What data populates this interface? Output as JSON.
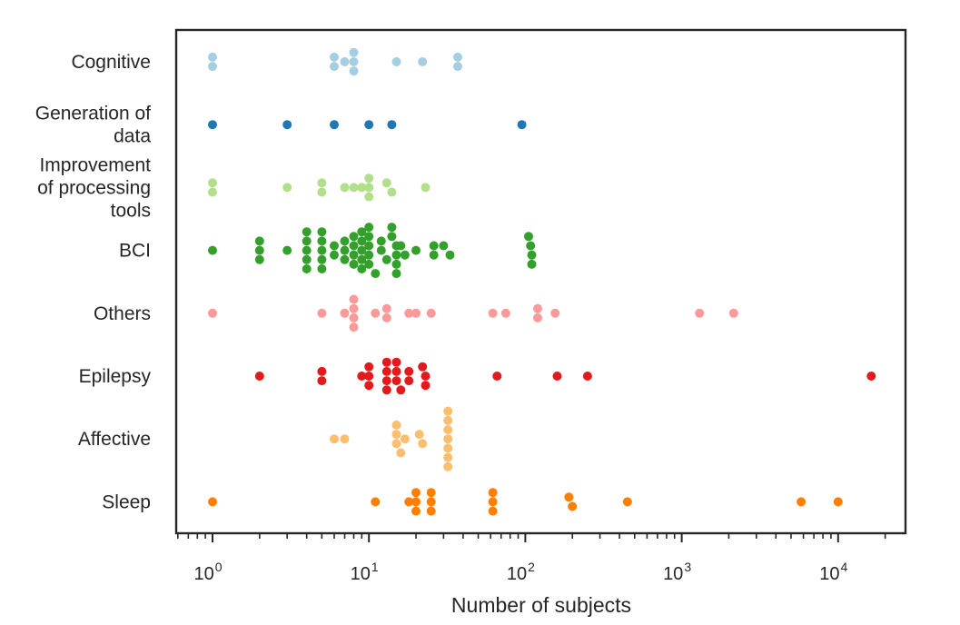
{
  "chart_data": {
    "type": "scatter",
    "subtype": "swarm",
    "xlabel": "Number of subjects",
    "ylabel": "",
    "x_scale": "log",
    "xlim": [
      0.6,
      28000
    ],
    "x_ticks": [
      {
        "value": 1,
        "base": "10",
        "exp": "0"
      },
      {
        "value": 10,
        "base": "10",
        "exp": "1"
      },
      {
        "value": 100,
        "base": "10",
        "exp": "2"
      },
      {
        "value": 1000,
        "base": "10",
        "exp": "3"
      },
      {
        "value": 10000,
        "base": "10",
        "exp": "4"
      }
    ],
    "grid": false,
    "legend": "none",
    "categories": [
      {
        "label": [
          "Cognitive"
        ],
        "color": "#a6cee3",
        "values": [
          1,
          1,
          6,
          6,
          7,
          8,
          8,
          8,
          15,
          22,
          37,
          37
        ]
      },
      {
        "label": [
          "Generation of",
          "data"
        ],
        "color": "#1f78b4",
        "values": [
          1,
          3,
          6,
          10,
          14,
          95
        ]
      },
      {
        "label": [
          "Improvement",
          "of processing",
          "tools"
        ],
        "color": "#b2df8a",
        "values": [
          1,
          1,
          3,
          5,
          5,
          7,
          8,
          9,
          10,
          10,
          10,
          13,
          14,
          23
        ]
      },
      {
        "label": [
          "BCI"
        ],
        "color": "#33a02c",
        "values": [
          1,
          2,
          2,
          2,
          3,
          4,
          4,
          4,
          4,
          4,
          5,
          5,
          5,
          5,
          5,
          6,
          6,
          7,
          7,
          7,
          8,
          8,
          8,
          8,
          9,
          9,
          9,
          9,
          9,
          10,
          10,
          10,
          10,
          10,
          11,
          12,
          12,
          13,
          14,
          14,
          15,
          15,
          15,
          15,
          16,
          17,
          20,
          26,
          26,
          30,
          33,
          105,
          108,
          110,
          110
        ]
      },
      {
        "label": [
          "Others"
        ],
        "color": "#fb9a99",
        "values": [
          1,
          5,
          7,
          8,
          8,
          8,
          8,
          11,
          13,
          13,
          18,
          20,
          25,
          62,
          75,
          120,
          120,
          155,
          1300,
          2150
        ]
      },
      {
        "label": [
          "Epilepsy"
        ],
        "color": "#e31a1c",
        "values": [
          2,
          5,
          5,
          9,
          10,
          10,
          10,
          13,
          13,
          13,
          13,
          15,
          15,
          15,
          16,
          18,
          18,
          22,
          23,
          23,
          66,
          160,
          250,
          16300
        ]
      },
      {
        "label": [
          "Affective"
        ],
        "color": "#fdbf6f",
        "values": [
          6,
          7,
          15,
          15,
          15,
          16,
          17,
          21,
          22,
          32,
          32,
          32,
          32,
          32,
          32,
          32
        ]
      },
      {
        "label": [
          "Sleep"
        ],
        "color": "#ff7f00",
        "values": [
          1,
          11,
          18,
          20,
          20,
          20,
          25,
          25,
          25,
          62,
          62,
          62,
          190,
          200,
          450,
          5800,
          10000
        ]
      }
    ]
  }
}
